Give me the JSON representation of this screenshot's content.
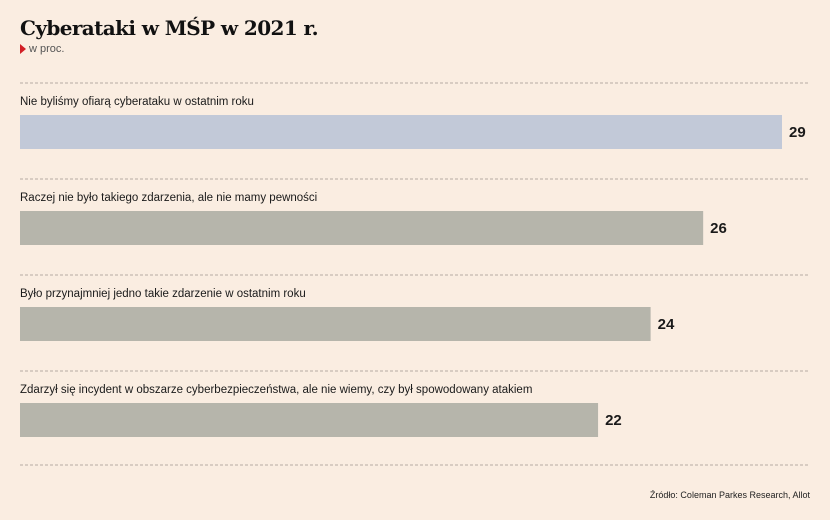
{
  "title": "Cyberataki w MŚP w 2021 r.",
  "subtitle": "w proc.",
  "source": "Źródło: Coleman Parkes Research, Allot",
  "colors": {
    "background": "#faede1",
    "highlight_bar": "#c2c9d8",
    "bar": "#b6b5ab",
    "divider": "#b5aca3",
    "marker": "#d21f26"
  },
  "chart_data": {
    "type": "bar",
    "orientation": "horizontal",
    "categories": [
      "Nie byliśmy ofiarą cyberataku w ostatnim roku",
      "Raczej nie było takiego zdarzenia, ale nie mamy pewności",
      "Było przynajmniej jedno takie zdarzenie w ostatnim roku",
      "Zdarzył się incydent w obszarze cyberbezpieczeństwa, ale nie wiemy, czy był spowodowany atakiem"
    ],
    "values": [
      29,
      26,
      24,
      22
    ],
    "highlighted_index": 0,
    "title": "Cyberataki w MŚP w 2021 r.",
    "unit": "w proc.",
    "xlim": [
      0,
      29
    ],
    "grid": false
  }
}
